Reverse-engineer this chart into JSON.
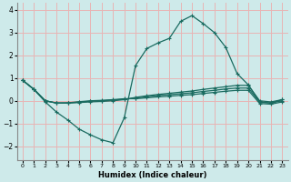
{
  "xlabel": "Humidex (Indice chaleur)",
  "bg_color": "#ceeaea",
  "line_color": "#1a6b60",
  "grid_color": "#e8b4b4",
  "xlim": [
    -0.5,
    23.5
  ],
  "ylim": [
    -2.6,
    4.3
  ],
  "yticks": [
    -2,
    -1,
    0,
    1,
    2,
    3,
    4
  ],
  "xticks": [
    0,
    1,
    2,
    3,
    4,
    5,
    6,
    7,
    8,
    9,
    10,
    11,
    12,
    13,
    14,
    15,
    16,
    17,
    18,
    19,
    20,
    21,
    22,
    23
  ],
  "line1_x": [
    0,
    1,
    2,
    3,
    4,
    5,
    6,
    7,
    8,
    9,
    10,
    11,
    12,
    13,
    14,
    15,
    16,
    17,
    18,
    19,
    20,
    21,
    22,
    23
  ],
  "line1_y": [
    0.9,
    0.5,
    -0.05,
    -0.5,
    -0.85,
    -1.25,
    -1.5,
    -1.72,
    -1.85,
    -0.75,
    1.55,
    2.3,
    2.55,
    2.75,
    3.5,
    3.75,
    3.4,
    3.0,
    2.35,
    1.2,
    0.7,
    -0.05,
    -0.1,
    0.05
  ],
  "line2_x": [
    0,
    1,
    2,
    3,
    4,
    5,
    6,
    7,
    8,
    9,
    10,
    11,
    12,
    13,
    14,
    15,
    16,
    17,
    18,
    19,
    20,
    21,
    22,
    23
  ],
  "line2_y": [
    0.9,
    0.5,
    0.0,
    -0.1,
    -0.1,
    -0.08,
    -0.05,
    -0.03,
    0.0,
    0.05,
    0.15,
    0.22,
    0.28,
    0.33,
    0.38,
    0.43,
    0.5,
    0.56,
    0.62,
    0.68,
    0.68,
    0.0,
    -0.05,
    0.05
  ],
  "line3_x": [
    0,
    1,
    2,
    3,
    4,
    5,
    6,
    7,
    8,
    9,
    10,
    11,
    12,
    13,
    14,
    15,
    16,
    17,
    18,
    19,
    20,
    21,
    22,
    23
  ],
  "line3_y": [
    0.9,
    0.5,
    0.0,
    -0.1,
    -0.1,
    -0.06,
    -0.02,
    0.0,
    0.03,
    0.07,
    0.12,
    0.18,
    0.23,
    0.27,
    0.31,
    0.35,
    0.41,
    0.46,
    0.52,
    0.56,
    0.56,
    -0.06,
    -0.1,
    0.0
  ],
  "line4_x": [
    0,
    1,
    2,
    3,
    4,
    5,
    6,
    7,
    8,
    9,
    10,
    11,
    12,
    13,
    14,
    15,
    16,
    17,
    18,
    19,
    20,
    21,
    22,
    23
  ],
  "line4_y": [
    0.9,
    0.5,
    0.0,
    -0.1,
    -0.09,
    -0.04,
    0.0,
    0.02,
    0.05,
    0.09,
    0.09,
    0.13,
    0.17,
    0.2,
    0.24,
    0.27,
    0.32,
    0.37,
    0.42,
    0.46,
    0.46,
    -0.12,
    -0.15,
    -0.05
  ]
}
